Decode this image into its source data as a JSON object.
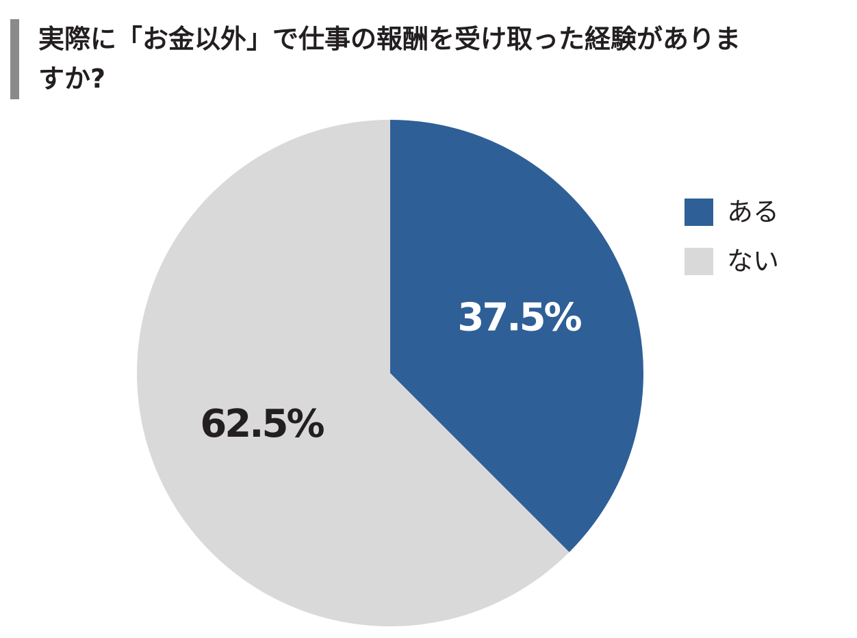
{
  "chart_data": {
    "type": "pie",
    "title": "実際に「お金以外」で仕事の報酬を受け取った経験がありますか?",
    "categories": [
      "ある",
      "ない"
    ],
    "values": [
      37.5,
      62.5
    ],
    "value_labels": [
      "37.5%",
      "62.5%"
    ],
    "colors": [
      "#2e5f97",
      "#d9d9d9"
    ],
    "label_colors": [
      "#ffffff",
      "#231f20"
    ]
  }
}
